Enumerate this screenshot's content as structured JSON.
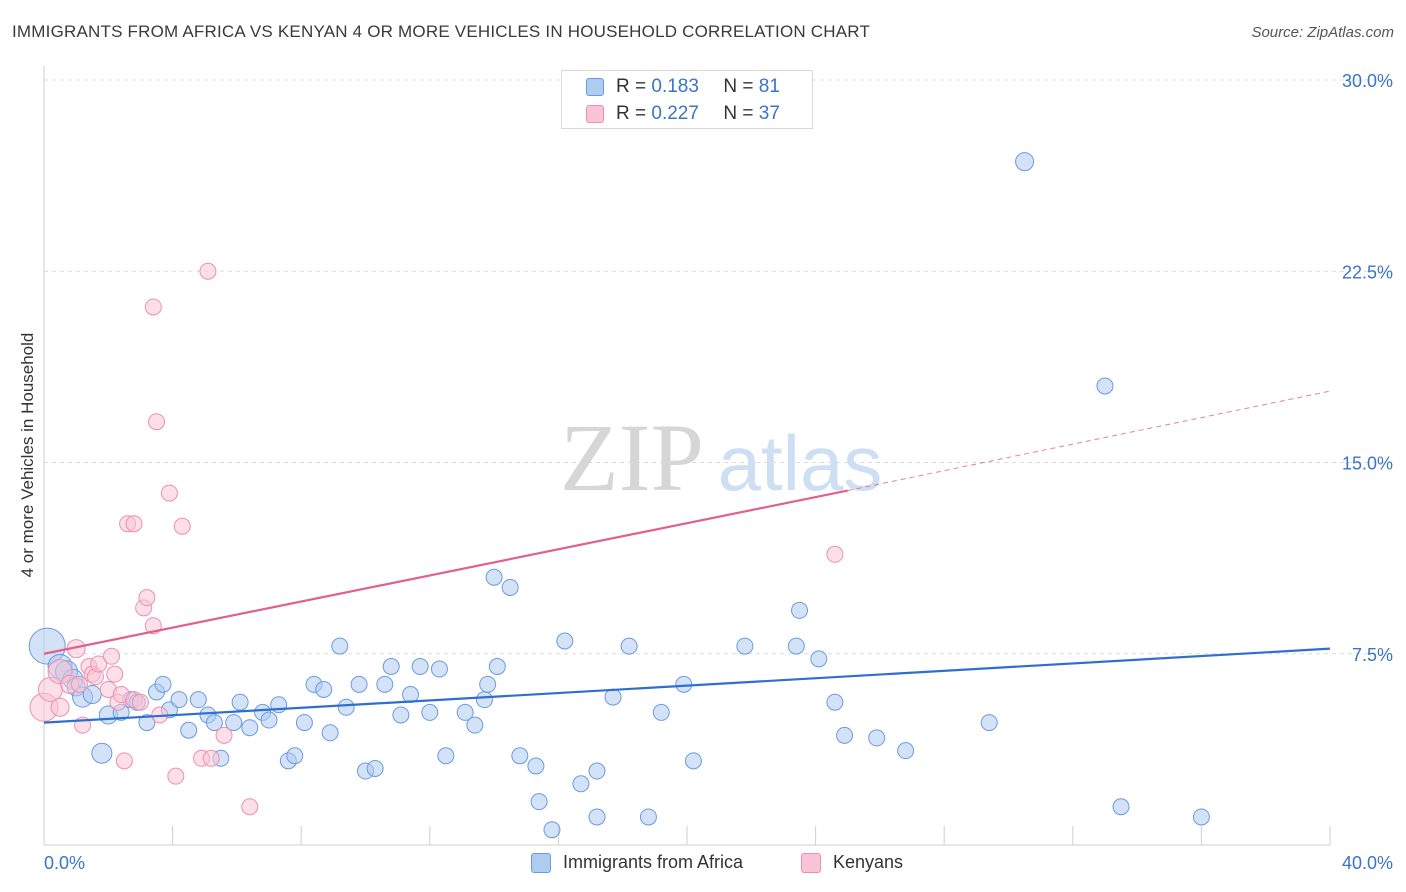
{
  "title": "IMMIGRANTS FROM AFRICA VS KENYAN 4 OR MORE VEHICLES IN HOUSEHOLD CORRELATION CHART",
  "source": "Source: ZipAtlas.com",
  "watermark": {
    "zip": "ZIP",
    "atlas": "atlas"
  },
  "legend": {
    "r_label": "R =",
    "n_label": "N =",
    "rows": [
      {
        "r": "0.183",
        "n": "81",
        "fill": "#aecbf0",
        "stroke": "#6a9be0"
      },
      {
        "r": "0.227",
        "n": "37",
        "fill": "#f9c4d5",
        "stroke": "#ee8fb0"
      }
    ]
  },
  "bottom_legend": [
    {
      "label": "Immigrants from Africa",
      "fill": "#aecbf0",
      "stroke": "#6a9be0"
    },
    {
      "label": "Kenyans",
      "fill": "#f9c4d5",
      "stroke": "#ee8fb0"
    }
  ],
  "chart_data": {
    "type": "scatter",
    "xlabel": "",
    "ylabel": "4 or more Vehicles in Household",
    "xlim": [
      0,
      40
    ],
    "ylim": [
      0,
      30
    ],
    "x_tick_labels": [
      {
        "value": 0,
        "label": "0.0%"
      },
      {
        "value": 40,
        "label": "40.0%"
      }
    ],
    "y_tick_labels": [
      {
        "value": 7.5,
        "label": "7.5%"
      },
      {
        "value": 15,
        "label": "15.0%"
      },
      {
        "value": 22.5,
        "label": "22.5%"
      },
      {
        "value": 30,
        "label": "30.0%"
      }
    ],
    "x_minor_ticks": [
      4,
      8,
      12,
      16,
      20,
      24,
      28,
      32,
      36,
      40
    ],
    "grid": true,
    "series": [
      {
        "name": "Immigrants from Africa",
        "color": "#6a9be0",
        "fill": "#aecbf0",
        "line_color": "#2f6fcf",
        "trend": {
          "x0": 0,
          "y0": 4.8,
          "x1": 40,
          "y1": 7.7
        },
        "points": [
          [
            0.1,
            7.8,
            18
          ],
          [
            0.5,
            7.0,
            12
          ],
          [
            0.7,
            6.8,
            11
          ],
          [
            0.9,
            6.5,
            10
          ],
          [
            1.0,
            6.2,
            9
          ],
          [
            1.2,
            5.8,
            10
          ],
          [
            1.5,
            5.9,
            9
          ],
          [
            1.8,
            3.6,
            10
          ],
          [
            2.0,
            5.1,
            9
          ],
          [
            2.4,
            5.2,
            8
          ],
          [
            2.7,
            5.7,
            8
          ],
          [
            2.9,
            5.6,
            8
          ],
          [
            3.2,
            4.8,
            8
          ],
          [
            3.5,
            6.0,
            8
          ],
          [
            3.7,
            6.3,
            8
          ],
          [
            3.9,
            5.3,
            8
          ],
          [
            4.2,
            5.7,
            8
          ],
          [
            4.5,
            4.5,
            8
          ],
          [
            4.8,
            5.7,
            8
          ],
          [
            5.1,
            5.1,
            8
          ],
          [
            5.3,
            4.8,
            8
          ],
          [
            5.5,
            3.4,
            8
          ],
          [
            5.9,
            4.8,
            8
          ],
          [
            6.1,
            5.6,
            8
          ],
          [
            6.4,
            4.6,
            8
          ],
          [
            6.8,
            5.2,
            8
          ],
          [
            7.0,
            4.9,
            8
          ],
          [
            7.3,
            5.5,
            8
          ],
          [
            7.6,
            3.3,
            8
          ],
          [
            7.8,
            3.5,
            8
          ],
          [
            8.1,
            4.8,
            8
          ],
          [
            8.4,
            6.3,
            8
          ],
          [
            8.7,
            6.1,
            8
          ],
          [
            8.9,
            4.4,
            8
          ],
          [
            9.2,
            7.8,
            8
          ],
          [
            9.4,
            5.4,
            8
          ],
          [
            9.8,
            6.3,
            8
          ],
          [
            10.0,
            2.9,
            8
          ],
          [
            10.3,
            3.0,
            8
          ],
          [
            10.6,
            6.3,
            8
          ],
          [
            10.8,
            7.0,
            8
          ],
          [
            11.1,
            5.1,
            8
          ],
          [
            11.4,
            5.9,
            8
          ],
          [
            11.7,
            7.0,
            8
          ],
          [
            12.0,
            5.2,
            8
          ],
          [
            12.3,
            6.9,
            8
          ],
          [
            12.5,
            3.5,
            8
          ],
          [
            13.1,
            5.2,
            8
          ],
          [
            13.4,
            4.7,
            8
          ],
          [
            13.7,
            5.7,
            8
          ],
          [
            13.8,
            6.3,
            8
          ],
          [
            14.0,
            10.5,
            8
          ],
          [
            14.1,
            7.0,
            8
          ],
          [
            14.5,
            10.1,
            8
          ],
          [
            14.8,
            3.5,
            8
          ],
          [
            15.3,
            3.1,
            8
          ],
          [
            15.4,
            1.7,
            8
          ],
          [
            15.8,
            0.6,
            8
          ],
          [
            16.2,
            8.0,
            8
          ],
          [
            16.7,
            2.4,
            8
          ],
          [
            17.2,
            1.1,
            8
          ],
          [
            17.2,
            2.9,
            8
          ],
          [
            17.7,
            5.8,
            8
          ],
          [
            18.2,
            7.8,
            8
          ],
          [
            18.8,
            1.1,
            8
          ],
          [
            19.2,
            5.2,
            8
          ],
          [
            19.9,
            6.3,
            8
          ],
          [
            20.2,
            3.3,
            8
          ],
          [
            21.8,
            7.8,
            8
          ],
          [
            23.4,
            7.8,
            8
          ],
          [
            23.5,
            9.2,
            8
          ],
          [
            24.1,
            7.3,
            8
          ],
          [
            24.6,
            5.6,
            8
          ],
          [
            24.9,
            4.3,
            8
          ],
          [
            25.9,
            4.2,
            8
          ],
          [
            26.8,
            3.7,
            8
          ],
          [
            29.4,
            4.8,
            8
          ],
          [
            30.5,
            26.8,
            9
          ],
          [
            33.0,
            18.0,
            8
          ],
          [
            33.5,
            1.5,
            8
          ],
          [
            36.0,
            1.1,
            8
          ]
        ]
      },
      {
        "name": "Kenyans",
        "color": "#ee8fb0",
        "fill": "#f9c4d5",
        "line_color": "#e0608e",
        "trend": {
          "x0": 0,
          "y0": 7.5,
          "x1": 25,
          "y1": 13.9
        },
        "trend_dashed": {
          "x0": 25,
          "y0": 13.9,
          "x1": 40,
          "y1": 17.8
        },
        "points": [
          [
            0.0,
            5.4,
            14
          ],
          [
            0.2,
            6.1,
            12
          ],
          [
            0.5,
            6.8,
            12
          ],
          [
            0.5,
            5.4,
            9
          ],
          [
            0.8,
            6.3,
            9
          ],
          [
            1.0,
            7.7,
            9
          ],
          [
            1.1,
            6.3,
            8
          ],
          [
            1.2,
            4.7,
            8
          ],
          [
            1.4,
            7.0,
            8
          ],
          [
            1.5,
            6.7,
            8
          ],
          [
            1.6,
            6.6,
            8
          ],
          [
            1.7,
            7.1,
            8
          ],
          [
            2.0,
            6.1,
            8
          ],
          [
            2.1,
            7.4,
            8
          ],
          [
            2.2,
            6.7,
            8
          ],
          [
            2.3,
            5.6,
            8
          ],
          [
            2.4,
            5.9,
            8
          ],
          [
            2.5,
            3.3,
            8
          ],
          [
            2.6,
            12.6,
            8
          ],
          [
            2.8,
            5.7,
            8
          ],
          [
            2.8,
            12.6,
            8
          ],
          [
            3.0,
            5.6,
            8
          ],
          [
            3.1,
            9.3,
            8
          ],
          [
            3.2,
            9.7,
            8
          ],
          [
            3.4,
            8.6,
            8
          ],
          [
            3.4,
            21.1,
            8
          ],
          [
            3.5,
            16.6,
            8
          ],
          [
            3.6,
            5.1,
            8
          ],
          [
            3.9,
            13.8,
            8
          ],
          [
            4.1,
            2.7,
            8
          ],
          [
            4.3,
            12.5,
            8
          ],
          [
            4.9,
            3.4,
            8
          ],
          [
            5.1,
            22.5,
            8
          ],
          [
            5.2,
            3.4,
            8
          ],
          [
            5.6,
            4.3,
            8
          ],
          [
            6.4,
            1.5,
            8
          ],
          [
            24.6,
            11.4,
            8
          ]
        ]
      }
    ]
  }
}
